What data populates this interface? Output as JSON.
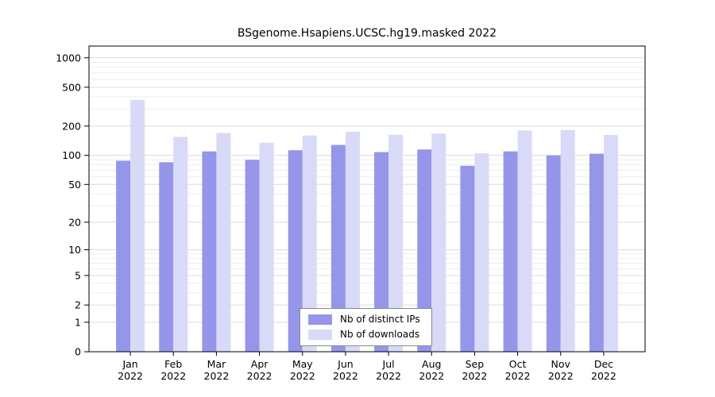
{
  "chart_data": {
    "type": "bar",
    "title": "BSgenome.Hsapiens.UCSC.hg19.masked 2022",
    "categories": [
      "Jan 2022",
      "Feb 2022",
      "Mar 2022",
      "Apr 2022",
      "May 2022",
      "Jun 2022",
      "Jul 2022",
      "Aug 2022",
      "Sep 2022",
      "Oct 2022",
      "Nov 2022",
      "Dec 2022"
    ],
    "series": [
      {
        "name": "Nb of distinct IPs",
        "color": "#9595ea",
        "values": [
          88,
          85,
          110,
          90,
          113,
          128,
          108,
          115,
          78,
          110,
          100,
          104
        ]
      },
      {
        "name": "Nb of downloads",
        "color": "#d9d9f8",
        "values": [
          370,
          155,
          170,
          135,
          160,
          175,
          163,
          167,
          105,
          180,
          182,
          162
        ]
      }
    ],
    "yticks": [
      0,
      1,
      2,
      5,
      10,
      20,
      50,
      100,
      200,
      500,
      1000
    ],
    "scale": "log10(x+1)",
    "ylim_log_max": 3.12,
    "grid": true,
    "legend_position": "bottom-center-inside",
    "colors": {
      "grid_major": "#dcdcdc",
      "grid_minor": "#ededed",
      "axis": "#000000",
      "background": "#ffffff"
    }
  }
}
